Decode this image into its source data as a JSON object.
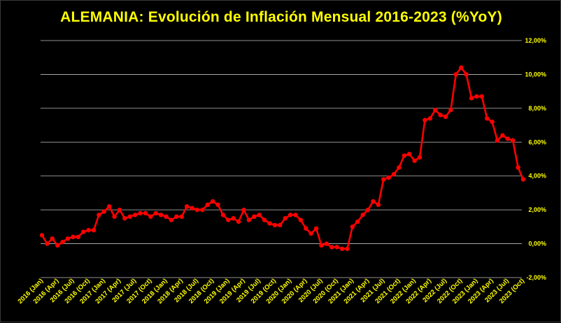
{
  "chart_data": {
    "type": "line",
    "title": "ALEMANIA: Evolución de Inflación Mensual 2016-2023 (%YoY)",
    "xlabel": "",
    "ylabel": "",
    "ylim": [
      -2,
      12
    ],
    "yticks": [
      "-2,00%",
      "0,00%",
      "2,00%",
      "4,00%",
      "6,00%",
      "8,00%",
      "10,00%",
      "12,00%"
    ],
    "y_axis_side": "right",
    "grid": true,
    "legend": "none",
    "colors": {
      "background": "#000000",
      "line": "#ff0000",
      "grid": "#bfbfbf",
      "text": "#ffff00"
    },
    "xticks": [
      "2016 (Jan)",
      "2016 (Apr)",
      "2016 (Jul)",
      "2016 (Oct)",
      "2017 (Jan)",
      "2017 (Apr)",
      "2017 (Jul)",
      "2017 (Oct)",
      "2018 (Jan)",
      "2018 (Apr)",
      "2018 (Jul)",
      "2018 (Oct)",
      "2019 (Jan)",
      "2019 (Apr)",
      "2019 (Jul)",
      "2019 (Oct)",
      "2020 (Jan)",
      "2020 (Apr)",
      "2020 (Jul)",
      "2020 (Oct)",
      "2021 (Jan)",
      "2021 (Apr)",
      "2021 (Jul)",
      "2021 (Oct)",
      "2022 (Jan)",
      "2022 (Apr)",
      "2022 (Jul)",
      "2022 (Oct)",
      "2023 (Jan)",
      "2023 (Apr)",
      "2023 (Jul)",
      "2023 (Oct)"
    ],
    "series": [
      {
        "values": [
          0.5,
          0.0,
          0.3,
          -0.1,
          0.1,
          0.3,
          0.4,
          0.4,
          0.7,
          0.8,
          0.8,
          1.7,
          1.9,
          2.2,
          1.6,
          2.0,
          1.5,
          1.6,
          1.7,
          1.8,
          1.8,
          1.6,
          1.8,
          1.7,
          1.6,
          1.4,
          1.6,
          1.6,
          2.2,
          2.1,
          2.0,
          2.0,
          2.3,
          2.5,
          2.3,
          1.7,
          1.4,
          1.5,
          1.3,
          2.0,
          1.4,
          1.6,
          1.7,
          1.4,
          1.2,
          1.1,
          1.1,
          1.5,
          1.7,
          1.7,
          1.4,
          0.9,
          0.6,
          0.9,
          -0.1,
          0.0,
          -0.2,
          -0.2,
          -0.3,
          -0.3,
          1.0,
          1.3,
          1.7,
          2.0,
          2.5,
          2.3,
          3.8,
          3.9,
          4.1,
          4.5,
          5.2,
          5.3,
          4.9,
          5.1,
          7.3,
          7.4,
          7.9,
          7.6,
          7.5,
          7.9,
          10.0,
          10.4,
          10.0,
          8.6,
          8.7,
          8.7,
          7.4,
          7.2,
          6.1,
          6.4,
          6.2,
          6.1,
          4.5,
          3.8
        ]
      }
    ]
  }
}
